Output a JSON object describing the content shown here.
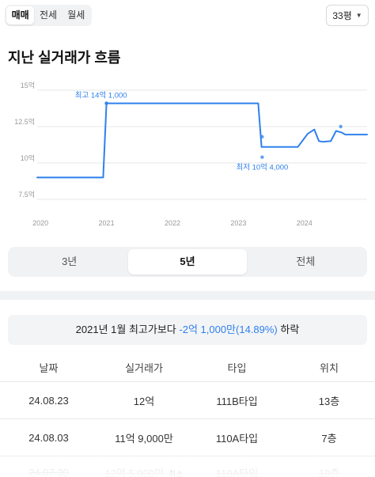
{
  "deal_tabs": [
    {
      "label": "매매",
      "active": true
    },
    {
      "label": "전세",
      "active": false
    },
    {
      "label": "월세",
      "active": false
    }
  ],
  "area_select": {
    "value": "33평"
  },
  "section_title": "지난 실거래가 흐름",
  "chart_data": {
    "type": "line",
    "y_unit": "억",
    "y_ticks": [
      7.5,
      10,
      12.5,
      15
    ],
    "y_tick_labels": [
      "7.5억",
      "10억",
      "12.5억",
      "15억"
    ],
    "x_tick_labels": [
      "2020",
      "2021",
      "2022",
      "2023",
      "2024"
    ],
    "ylim": [
      7.5,
      15
    ],
    "xlim": [
      2019.95,
      2024.95
    ],
    "grid": true,
    "series": [
      {
        "x": [
          2019.95,
          2020.95,
          2021.0,
          2023.3,
          2023.35,
          2023.9,
          2024.05,
          2024.15,
          2024.22,
          2024.28,
          2024.4,
          2024.48,
          2024.56,
          2024.62,
          2024.7,
          2024.95
        ],
        "y": [
          9.0,
          9.0,
          14.1,
          14.1,
          11.1,
          11.1,
          12.0,
          12.3,
          11.5,
          11.45,
          11.5,
          12.2,
          12.1,
          11.95,
          11.95,
          11.95
        ]
      }
    ],
    "points": [
      {
        "x": 2021.0,
        "y": 14.1
      },
      {
        "x": 2023.36,
        "y": 10.4
      },
      {
        "x": 2023.36,
        "y": 11.8
      },
      {
        "x": 2024.55,
        "y": 12.5
      }
    ],
    "annotations": [
      {
        "text": "최고 14억 1,000",
        "x": 2021.0,
        "y": 14.1,
        "position": "above-left"
      },
      {
        "text": "최저 10억 4,000",
        "x": 2023.36,
        "y": 10.4,
        "position": "below"
      }
    ],
    "colors": {
      "line": "#2f80ed",
      "grid": "#e6e7ea",
      "axis_text": "#999999",
      "annotation": "#2f80ed"
    }
  },
  "period_tabs": [
    {
      "label": "3년",
      "active": false
    },
    {
      "label": "5년",
      "active": true
    },
    {
      "label": "전체",
      "active": false
    }
  ],
  "summary": {
    "prefix": "2021년 1월 최고가보다 ",
    "highlight": "-2억 1,000만(14.89%)",
    "suffix": " 하락"
  },
  "table": {
    "headers": [
      "날짜",
      "실거래가",
      "타입",
      "위치"
    ],
    "rows": [
      {
        "date": "24.08.23",
        "price": "12억",
        "type": "111B타입",
        "floor": "13층",
        "cancelled": false
      },
      {
        "date": "24.08.03",
        "price": "11억 9,000만",
        "type": "110A타입",
        "floor": "7층",
        "cancelled": false
      },
      {
        "date": "24.07.30",
        "price": "12억 5,000만",
        "badge": "취소",
        "type": "110A타입",
        "floor": "10층",
        "cancelled": true
      }
    ]
  }
}
